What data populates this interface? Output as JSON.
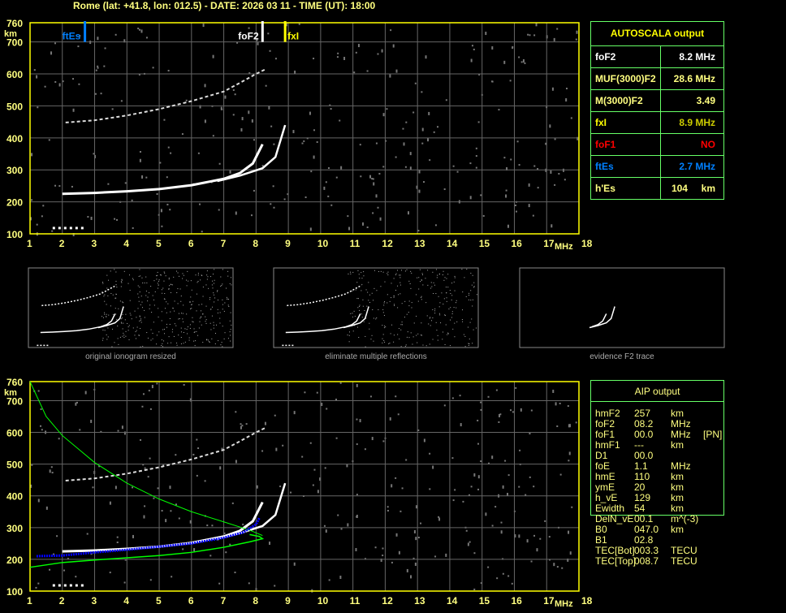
{
  "header": {
    "title": "Rome (lat: +41.8, lon: 012.5) - DATE: 2026 03 11 - TIME (UT): 18:00"
  },
  "autoscala": {
    "title": "AUTOSCALA output",
    "rows": [
      {
        "key": "foF2",
        "value": "8.2 MHz",
        "color": "#ffffff"
      },
      {
        "key": "MUF(3000)F2",
        "value": "28.6 MHz",
        "color": "#ffff80"
      },
      {
        "key": "M(3000)F2",
        "value": "3.49",
        "color": "#ffff80"
      },
      {
        "key": "fxI",
        "value": "8.9 MHz",
        "color": "#cccc00",
        "keycolor": "#ffff00"
      },
      {
        "key": "foF1",
        "value": "NO",
        "color": "#ff0000"
      },
      {
        "key": "ftEs",
        "value": "2.7 MHz",
        "color": "#0080ff"
      },
      {
        "key": "h'Es",
        "value": "104     km",
        "color": "#ffff80"
      }
    ]
  },
  "aip": {
    "title": "AIP output",
    "rows": [
      [
        "hmF2",
        "257",
        "km",
        ""
      ],
      [
        "foF2",
        "08.2",
        "MHz",
        ""
      ],
      [
        "foF1",
        "00.0",
        "MHz",
        "[PN]"
      ],
      [
        "hmF1",
        "---",
        "km",
        ""
      ],
      [
        "D1",
        "00.0",
        "",
        ""
      ],
      [
        "foE",
        "1.1",
        "MHz",
        ""
      ],
      [
        "hmE",
        "110",
        "km",
        ""
      ],
      [
        "ymE",
        "20",
        "km",
        ""
      ],
      [
        "h_vE",
        "129",
        "km",
        ""
      ],
      [
        "Ewidth",
        "54",
        "km",
        ""
      ],
      [
        "DelN_vE",
        "00.1",
        "m^(-3)",
        ""
      ],
      [
        "B0",
        "047.0",
        "km",
        ""
      ],
      [
        "B1",
        "02.8",
        "",
        ""
      ],
      [
        "TEC[Bot]",
        "003.3",
        "TECU",
        ""
      ],
      [
        "TEC[Top]",
        "008.7",
        "TECU",
        ""
      ]
    ]
  },
  "thumbnails": [
    "original ionogram resized",
    "eliminate multiple reflections",
    "evidence F2 trace"
  ],
  "chart_data": [
    {
      "type": "scatter",
      "xlabel": "MHz",
      "ylabel": "km",
      "xlim": [
        1,
        18
      ],
      "ylim": [
        100,
        760
      ],
      "xticks": [
        1,
        2,
        3,
        4,
        5,
        6,
        7,
        8,
        9,
        10,
        11,
        12,
        13,
        14,
        15,
        16,
        17,
        18
      ],
      "yticks": [
        100,
        200,
        300,
        400,
        500,
        600,
        700,
        760
      ],
      "grid": true,
      "markers": [
        {
          "name": "ftEs",
          "x": 2.7,
          "color": "#0080ff"
        },
        {
          "name": "foF2",
          "x": 8.2,
          "color": "#ffffff"
        },
        {
          "name": "fxI",
          "x": 8.9,
          "color": "#ffff00"
        }
      ],
      "traces": [
        {
          "kind": "o-trace",
          "points": [
            [
              2,
              225
            ],
            [
              3,
              228
            ],
            [
              4,
              233
            ],
            [
              5,
              240
            ],
            [
              6,
              252
            ],
            [
              7,
              272
            ],
            [
              7.5,
              290
            ],
            [
              7.9,
              320
            ],
            [
              8.2,
              380
            ]
          ]
        },
        {
          "kind": "x-trace",
          "points": [
            [
              6.8,
              265
            ],
            [
              7.5,
              282
            ],
            [
              8.2,
              305
            ],
            [
              8.6,
              340
            ],
            [
              8.9,
              440
            ]
          ]
        },
        {
          "kind": "second-hop",
          "points": [
            [
              2.1,
              448
            ],
            [
              3,
              455
            ],
            [
              4,
              470
            ],
            [
              5,
              490
            ],
            [
              6,
              515
            ],
            [
              7,
              545
            ],
            [
              7.5,
              572
            ],
            [
              8,
              600
            ],
            [
              8.3,
              615
            ]
          ]
        },
        {
          "kind": "es",
          "points": [
            [
              1.7,
              118
            ],
            [
              2,
              118
            ],
            [
              2.4,
              118
            ],
            [
              2.7,
              118
            ]
          ]
        }
      ]
    },
    {
      "type": "scatter",
      "xlabel": "MHz",
      "ylabel": "km",
      "xlim": [
        1,
        18
      ],
      "ylim": [
        100,
        760
      ],
      "xticks": [
        1,
        2,
        3,
        4,
        5,
        6,
        7,
        8,
        9,
        10,
        11,
        12,
        13,
        14,
        15,
        16,
        17,
        18
      ],
      "yticks": [
        100,
        200,
        300,
        400,
        500,
        600,
        700,
        760
      ],
      "grid": true,
      "profile": {
        "color": "#00ff00",
        "top": [
          [
            1,
            760
          ],
          [
            1.5,
            650
          ],
          [
            2,
            590
          ],
          [
            3,
            505
          ],
          [
            4,
            440
          ],
          [
            5,
            390
          ],
          [
            6,
            350
          ],
          [
            7,
            318
          ],
          [
            7.8,
            292
          ],
          [
            8.2,
            275
          ]
        ],
        "bottom": [
          [
            1,
            175
          ],
          [
            2,
            190
          ],
          [
            3,
            198
          ],
          [
            4,
            205
          ],
          [
            5,
            212
          ],
          [
            6,
            222
          ],
          [
            7,
            238
          ],
          [
            7.8,
            255
          ],
          [
            8.2,
            265
          ],
          [
            8.1,
            272
          ],
          [
            7.8,
            278
          ]
        ]
      },
      "aip_trace": {
        "color": "#0000ff",
        "points": [
          [
            1.2,
            210
          ],
          [
            2,
            212
          ],
          [
            3,
            222
          ],
          [
            4,
            230
          ],
          [
            5,
            240
          ],
          [
            6,
            250
          ],
          [
            7,
            268
          ],
          [
            7.6,
            285
          ],
          [
            8,
            310
          ],
          [
            8.1,
            330
          ]
        ]
      }
    }
  ]
}
